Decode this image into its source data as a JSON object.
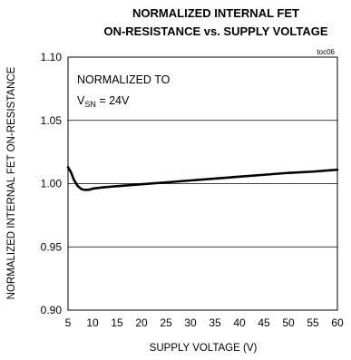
{
  "chart_data": {
    "type": "line",
    "title_lines": [
      "NORMALIZED INTERNAL FET",
      "ON-RESISTANCE vs. SUPPLY VOLTAGE"
    ],
    "code": "toc06",
    "xlabel": "SUPPLY VOLTAGE (V)",
    "ylabel": "NORMALIZED INTERNAL FET ON-RESISTANCE",
    "xlim": [
      5,
      60
    ],
    "ylim": [
      0.9,
      1.1
    ],
    "x_ticks": [
      "5",
      "10",
      "15",
      "20",
      "25",
      "30",
      "35",
      "40",
      "45",
      "50",
      "55",
      "60"
    ],
    "y_ticks": [
      "1.10",
      "1.05",
      "1.00",
      "0.95",
      "0.90"
    ],
    "y_tick_values": [
      1.1,
      1.05,
      1.0,
      0.95,
      0.9
    ],
    "grid": "horizontal",
    "annotation": {
      "line1": "NORMALIZED TO",
      "prefix": "V",
      "subscript": "SN",
      "suffix": " = 24V"
    },
    "series": [
      {
        "x": [
          5,
          5.6,
          6.2,
          7,
          7.8,
          8.5,
          9.3,
          10,
          12,
          15,
          20,
          25,
          30,
          35,
          40,
          45,
          50,
          55,
          60
        ],
        "y": [
          1.013,
          1.009,
          1.003,
          0.998,
          0.9955,
          0.995,
          0.9952,
          0.996,
          0.997,
          0.998,
          0.9995,
          1.001,
          1.0025,
          1.004,
          1.0055,
          1.007,
          1.0085,
          1.0095,
          1.011
        ]
      }
    ]
  }
}
